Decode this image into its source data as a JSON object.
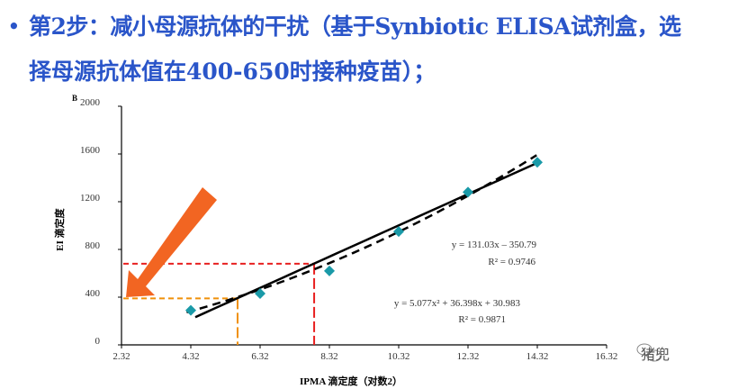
{
  "slide": {
    "bullet": "•",
    "line1": "第2步：减小母源抗体的干扰（基于Synbiotic ELISA试剂盒，选",
    "line2": "择母源抗体值在400-650时接种疫苗）；"
  },
  "watermark": {
    "text": "猪兜",
    "icon": "wechat-icon"
  },
  "chart_data": {
    "type": "scatter",
    "panel_label": "B",
    "xlabel": "IPMA 滴定度（对数2）",
    "ylabel": "EI 滴定度",
    "xlim": [
      2.32,
      16.32
    ],
    "ylim": [
      0,
      2000
    ],
    "xticks": [
      "2.32",
      "4.32",
      "6.32",
      "8.32",
      "10.32",
      "12.32",
      "14.32",
      "16.32"
    ],
    "yticks": [
      "0",
      "400",
      "800",
      "1200",
      "1600",
      "2000"
    ],
    "points": {
      "x": [
        4.32,
        6.32,
        8.32,
        10.32,
        12.32,
        14.32
      ],
      "y": [
        290,
        430,
        620,
        950,
        1280,
        1530
      ],
      "color": "#1a9aa8"
    },
    "fits": [
      {
        "name": "linear",
        "style": "solid",
        "equation": "y = 131.03x – 350.79",
        "r2": "R² = 0.9746",
        "a": 0,
        "b": 131.03,
        "c": -350.79,
        "xrange": [
          4.45,
          14.3
        ]
      },
      {
        "name": "quadratic",
        "style": "dashed",
        "equation": "y = 5.077x² + 36.398x + 30.983",
        "r2": "R² = 0.9871",
        "a": 5.077,
        "b": 36.398,
        "c": 30.983,
        "xrange": [
          4.2,
          14.3
        ]
      }
    ],
    "guides": [
      {
        "color": "#e82020",
        "x": 7.88,
        "y": 680
      },
      {
        "color": "#f0900a",
        "x": 5.67,
        "y": 390
      }
    ],
    "arrow_color": "#f26522",
    "grid": false
  }
}
